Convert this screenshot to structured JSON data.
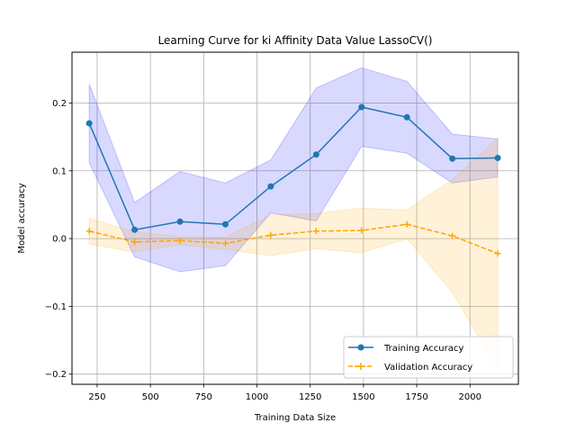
{
  "chart_data": {
    "type": "line",
    "title": "Learning Curve for ki Affinity Data Value LassoCV()",
    "xlabel": "Training Data Size",
    "ylabel": "Model accuracy",
    "xlim": [
      132,
      2227
    ],
    "ylim": [
      -0.215,
      0.275
    ],
    "xticks": [
      250,
      500,
      750,
      1000,
      1250,
      1500,
      1750,
      2000
    ],
    "yticks": [
      -0.2,
      -0.1,
      0.0,
      0.1,
      0.2
    ],
    "xtick_labels": [
      "250",
      "500",
      "750",
      "1000",
      "1250",
      "1500",
      "1750",
      "2000"
    ],
    "ytick_labels": [
      "−0.2",
      "−0.1",
      "0.0",
      "0.1",
      "0.2"
    ],
    "grid": true,
    "legend_position": "lower-right",
    "x": [
      213,
      426,
      639,
      852,
      1065,
      1278,
      1491,
      1704,
      1917,
      2130
    ],
    "series": [
      {
        "name": "Training Accuracy",
        "color": "#1f77b4",
        "fill_color": "#0000ff",
        "marker": "circle",
        "linestyle": "solid",
        "values": [
          0.17,
          0.013,
          0.025,
          0.021,
          0.077,
          0.124,
          0.194,
          0.179,
          0.118,
          0.119
        ],
        "upper": [
          0.228,
          0.053,
          0.099,
          0.082,
          0.116,
          0.222,
          0.252,
          0.232,
          0.154,
          0.147
        ],
        "lower": [
          0.112,
          -0.027,
          -0.049,
          -0.04,
          0.038,
          0.026,
          0.136,
          0.126,
          0.082,
          0.091
        ]
      },
      {
        "name": "Validation Accuracy",
        "color": "#ffa500",
        "fill_color": "#ffa500",
        "marker": "plus",
        "linestyle": "dashed",
        "values": [
          0.011,
          -0.005,
          -0.003,
          -0.007,
          0.005,
          0.011,
          0.012,
          0.021,
          0.004,
          -0.022
        ],
        "upper": [
          0.03,
          0.01,
          0.003,
          0.002,
          0.035,
          0.037,
          0.045,
          0.042,
          0.087,
          0.148
        ],
        "lower": [
          -0.008,
          -0.02,
          -0.009,
          -0.016,
          -0.025,
          -0.015,
          -0.021,
          0.0,
          -0.079,
          -0.192
        ]
      }
    ]
  }
}
